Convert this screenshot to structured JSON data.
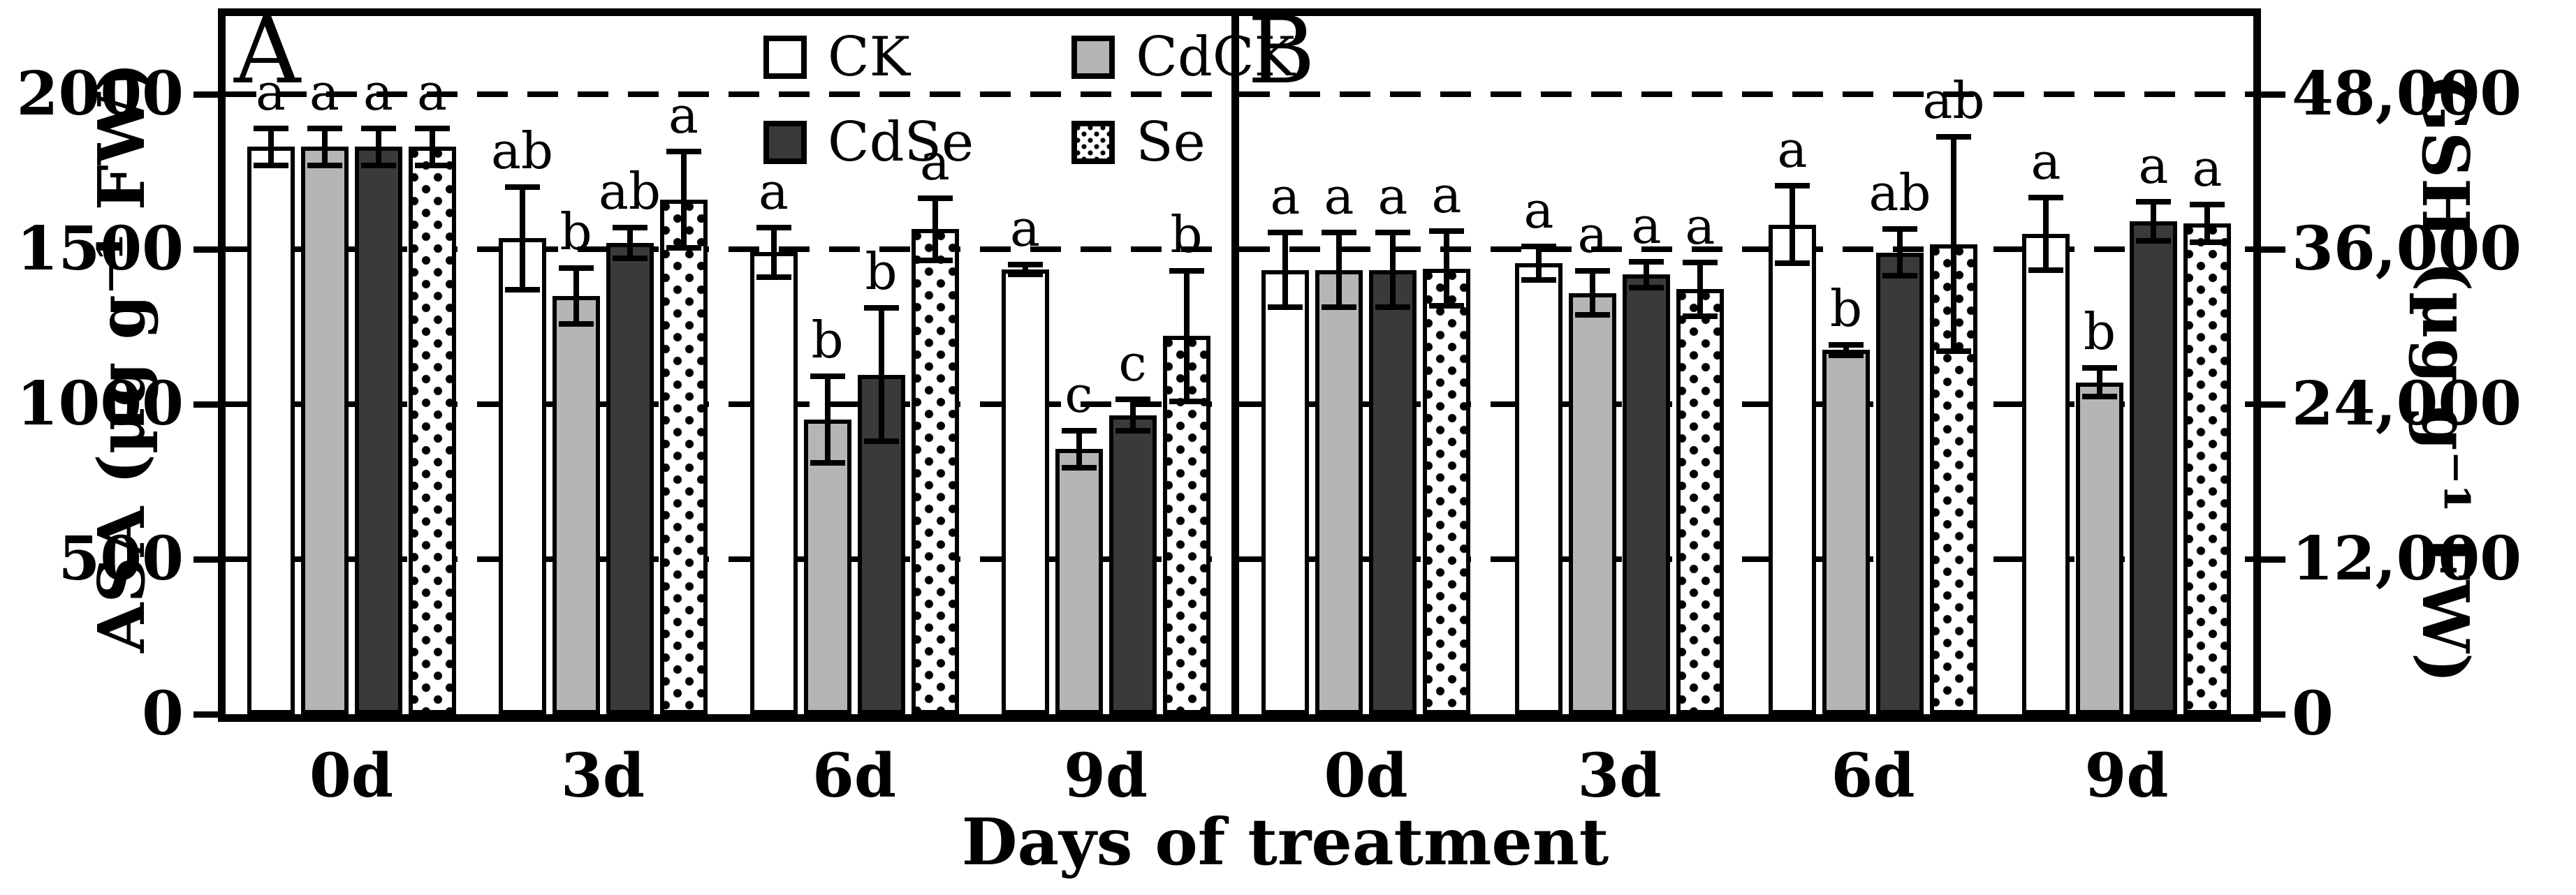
{
  "colors": {
    "ink": "#000000",
    "bar_ck": "#ffffff",
    "bar_cdck": "#b5b5b5",
    "bar_cdse": "#3a3a3a",
    "bar_se": "white with black polka dots"
  },
  "legend": {
    "items": [
      {
        "label": "CK",
        "fill": "#ffffff"
      },
      {
        "label": "CdCK",
        "fill": "#b5b5b5"
      },
      {
        "label": "CdSe",
        "fill": "#3a3a3a"
      },
      {
        "label": "Se",
        "fill": "dotted"
      }
    ]
  },
  "xlabel": "Days of treatment",
  "chart_data": [
    {
      "type": "bar",
      "panel_label": "A",
      "ylabel": "ASA (µg g⁻¹ FW)",
      "axis_side": "left",
      "ylim": [
        0,
        2000
      ],
      "yticks": [
        0,
        500,
        1000,
        1500,
        2000
      ],
      "ytick_labels": [
        "0",
        "500",
        "1000",
        "1500",
        "2000"
      ],
      "grid": "horizontal dashed at each tick",
      "legend_position": "top of panel A",
      "categories": [
        "0d",
        "3d",
        "6d",
        "9d"
      ],
      "series": [
        {
          "name": "CK",
          "values": [
            1830,
            1535,
            1490,
            1435
          ],
          "errors": [
            60,
            165,
            80,
            15
          ],
          "letters": [
            "a",
            "ab",
            "a",
            "a"
          ]
        },
        {
          "name": "CdCK",
          "values": [
            1830,
            1350,
            950,
            855
          ],
          "errors": [
            60,
            90,
            140,
            60
          ],
          "letters": [
            "a",
            "b",
            "b",
            "c"
          ]
        },
        {
          "name": "CdSe",
          "values": [
            1830,
            1520,
            1095,
            965
          ],
          "errors": [
            60,
            50,
            215,
            50
          ],
          "letters": [
            "a",
            "ab",
            "b",
            "c"
          ]
        },
        {
          "name": "Se",
          "values": [
            1830,
            1660,
            1565,
            1220
          ],
          "errors": [
            60,
            155,
            100,
            210
          ],
          "letters": [
            "a",
            "a",
            "a",
            "b"
          ]
        }
      ]
    },
    {
      "type": "bar",
      "panel_label": "B",
      "ylabel": "GSH (µg g⁻¹ FW)",
      "axis_side": "right",
      "ylim": [
        0,
        48000
      ],
      "yticks": [
        0,
        12000,
        24000,
        36000,
        48000
      ],
      "ytick_labels": [
        "0",
        "12,000",
        "24,000",
        "36,000",
        "48,000"
      ],
      "grid": "horizontal dashed at each tick",
      "categories": [
        "0d",
        "3d",
        "6d",
        "9d"
      ],
      "series": [
        {
          "name": "CK",
          "values": [
            34400,
            34900,
            37900,
            37200
          ],
          "errors": [
            2900,
            1300,
            3000,
            2800
          ],
          "letters": [
            "a",
            "a",
            "a",
            "a"
          ]
        },
        {
          "name": "CdCK",
          "values": [
            34400,
            32600,
            28200,
            25700
          ],
          "errors": [
            2900,
            1700,
            400,
            1100
          ],
          "letters": [
            "a",
            "a",
            "b",
            "b"
          ]
        },
        {
          "name": "CdSe",
          "values": [
            34400,
            34050,
            35750,
            38150
          ],
          "errors": [
            2900,
            1000,
            1800,
            1500
          ],
          "letters": [
            "a",
            "a",
            "ab",
            "a"
          ]
        },
        {
          "name": "Se",
          "values": [
            34500,
            32900,
            36400,
            38000
          ],
          "errors": [
            2900,
            2100,
            8300,
            1450
          ],
          "letters": [
            "a",
            "a",
            "ab",
            "a"
          ]
        }
      ]
    }
  ]
}
